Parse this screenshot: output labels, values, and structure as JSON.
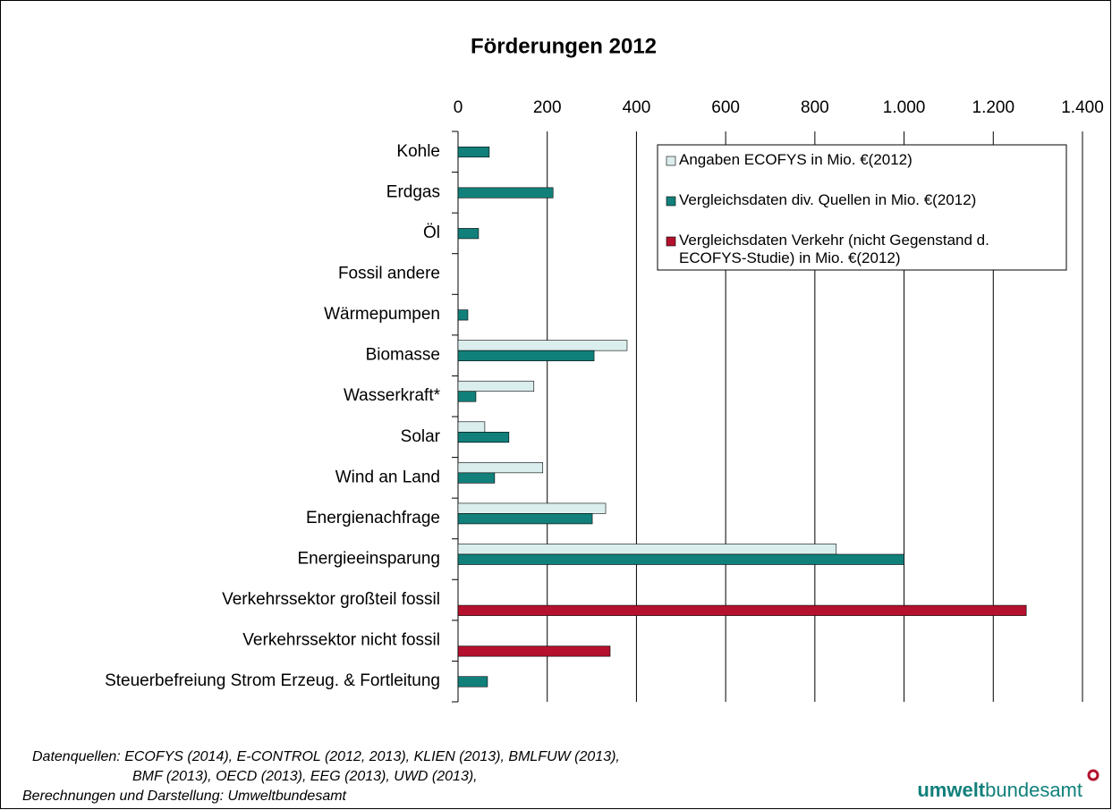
{
  "chart_data": {
    "type": "bar",
    "orientation": "horizontal",
    "title": "Förderungen 2012",
    "categories": [
      "Kohle",
      "Erdgas",
      "Öl",
      "Fossil andere",
      "Wärmepumpen",
      "Biomasse",
      "Wasserkraft*",
      "Solar",
      "Wind an Land",
      "Energienachfrage",
      "Energieeinsparung",
      "Verkehrssektor großteil fossil",
      "Verkehrssektor nicht fossil",
      "Steuerbefreiung Strom Erzeug. & Fortleitung"
    ],
    "series": [
      {
        "name": "Angaben ECOFYS in Mio. €(2012)",
        "color": "#dbeeee",
        "values": [
          null,
          null,
          null,
          null,
          null,
          379,
          170,
          60,
          190,
          331,
          848,
          null,
          null,
          null
        ]
      },
      {
        "name": "Vergleichsdaten div. Quellen in Mio. €(2012)",
        "color": "#11807b",
        "values": [
          70,
          213,
          46,
          null,
          22,
          305,
          40,
          114,
          82,
          301,
          1000,
          null,
          null,
          66
        ]
      },
      {
        "name": "Vergleichsdaten Verkehr (nicht Gegenstand d. ECOFYS-Studie) in Mio. €(2012)",
        "color": "#b3112e",
        "values": [
          null,
          null,
          null,
          null,
          null,
          null,
          null,
          null,
          null,
          null,
          null,
          1274,
          341,
          null
        ]
      }
    ],
    "xlim": [
      0,
      1400
    ],
    "xticks": [
      0,
      200,
      400,
      600,
      800,
      {
        "value": 1000,
        "label": "1.000"
      },
      {
        "value": 1200,
        "label": "1.200"
      },
      {
        "value": 1400,
        "label": "1.400"
      }
    ],
    "grid": true,
    "legend": "upper right",
    "notes": [
      "Datenquellen: ECOFYS (2014), E-CONTROL (2012, 2013), KLIEN (2013), BMLFUW (2013),",
      "BMF (2013), OECD (2013), EEG (2013), UWD (2013),",
      "Berechnungen und Darstellung: Umweltbundesamt"
    ],
    "logo": {
      "bold": "umwelt",
      "rest": "bundesamt"
    }
  }
}
